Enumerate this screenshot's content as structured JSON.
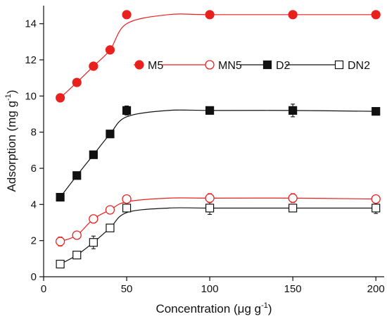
{
  "chart_data": {
    "type": "scatter",
    "xlabel": "Concentration (μg g",
    "xlabel_sup": "-1",
    "xlabel_end": ")",
    "ylabel": "Adsorption (mg g",
    "ylabel_sup": "-1",
    "ylabel_end": ")",
    "xlim": [
      0,
      205
    ],
    "ylim": [
      0,
      15
    ],
    "xticks": [
      0,
      50,
      100,
      150,
      200
    ],
    "yticks": [
      0,
      2,
      4,
      6,
      8,
      10,
      12,
      14
    ],
    "grid": false,
    "legend_position": "upper-right, inside plot",
    "series": [
      {
        "name": "M5",
        "marker": "circle-filled",
        "color": "#e8211f",
        "x": [
          10,
          20,
          30,
          40,
          50,
          100,
          150,
          200
        ],
        "y": [
          9.9,
          10.75,
          11.65,
          12.55,
          14.5,
          14.5,
          14.5,
          14.5
        ],
        "err": [
          0.1,
          0.12,
          0.1,
          0.1,
          0.12,
          0.1,
          0.1,
          0.1
        ],
        "fit": [
          9.9,
          10.75,
          11.65,
          12.55,
          14.0,
          14.5,
          14.5,
          14.5,
          14.5
        ]
      },
      {
        "name": "MN5",
        "marker": "circle-open",
        "color": "#e8211f",
        "x": [
          10,
          20,
          30,
          40,
          50,
          100,
          150,
          200
        ],
        "y": [
          1.95,
          2.3,
          3.2,
          3.7,
          4.3,
          4.35,
          4.35,
          4.3
        ],
        "err": [
          0.25,
          0.2,
          0.2,
          0.15,
          0.2,
          0.25,
          0.25,
          0.2
        ],
        "fit": [
          1.95,
          2.3,
          3.2,
          3.7,
          4.15,
          4.35,
          4.35,
          4.35,
          4.3
        ]
      },
      {
        "name": "D2",
        "marker": "square-filled",
        "color": "#111111",
        "x": [
          10,
          20,
          30,
          40,
          50,
          100,
          150,
          200
        ],
        "y": [
          4.4,
          5.6,
          6.75,
          7.9,
          9.2,
          9.2,
          9.2,
          9.15
        ],
        "err": [
          0.1,
          0.15,
          0.15,
          0.15,
          0.25,
          0.15,
          0.35,
          0.15
        ],
        "fit": [
          4.4,
          5.6,
          6.75,
          7.9,
          8.85,
          9.2,
          9.2,
          9.2,
          9.15
        ]
      },
      {
        "name": "DN2",
        "marker": "square-open",
        "color": "#111111",
        "x": [
          10,
          20,
          30,
          40,
          50,
          100,
          150,
          200
        ],
        "y": [
          0.7,
          1.2,
          1.9,
          2.7,
          3.8,
          3.8,
          3.8,
          3.8
        ],
        "err": [
          0.1,
          0.15,
          0.35,
          0.2,
          0.2,
          0.35,
          0.2,
          0.3
        ],
        "fit": [
          0.7,
          1.2,
          1.9,
          2.7,
          3.55,
          3.8,
          3.8,
          3.8,
          3.8
        ]
      }
    ]
  }
}
